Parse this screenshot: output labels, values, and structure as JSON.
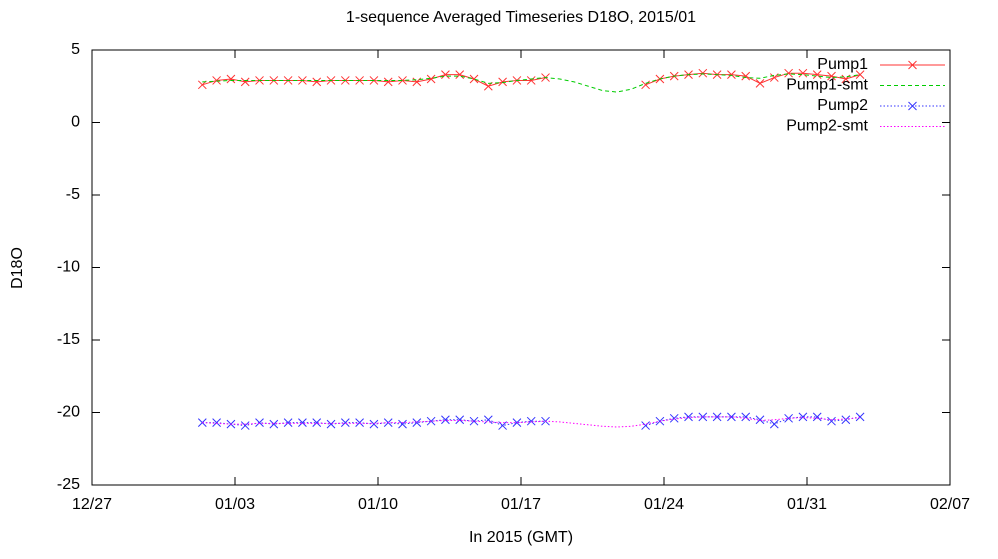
{
  "chart_data": {
    "type": "line",
    "title": "1-sequence Averaged Timeseries D18O, 2015/01",
    "x_label": "In 2015 (GMT)",
    "y_label": "D18O",
    "xlim": [
      0,
      42
    ],
    "xticks": [
      {
        "value": 0,
        "label": "12/27"
      },
      {
        "value": 7,
        "label": "01/03"
      },
      {
        "value": 14,
        "label": "01/10"
      },
      {
        "value": 21,
        "label": "01/17"
      },
      {
        "value": 28,
        "label": "01/24"
      },
      {
        "value": 35,
        "label": "01/31"
      },
      {
        "value": 42,
        "label": "02/07"
      }
    ],
    "ylim": [
      -25,
      5
    ],
    "yticks": [
      5,
      0,
      -5,
      -10,
      -15,
      -20,
      -25
    ],
    "legend": "top-right",
    "x": [
      5.4,
      6.1,
      6.8,
      7.5,
      8.2,
      8.9,
      9.6,
      10.3,
      11.0,
      11.7,
      12.4,
      13.1,
      13.8,
      14.5,
      15.2,
      15.9,
      16.6,
      17.3,
      18.0,
      18.7,
      19.4,
      20.1,
      20.8,
      21.5,
      22.2,
      22.9,
      23.6,
      24.3,
      25.0,
      25.7,
      26.4,
      27.1,
      27.8,
      28.5,
      29.2,
      29.9,
      30.6,
      31.3,
      32.0,
      32.7,
      33.4,
      34.1,
      34.8,
      35.5,
      36.2,
      36.9,
      37.6
    ],
    "series": [
      {
        "name": "Pump1",
        "color": "#ff3333",
        "style": "linespoints",
        "dash": "solid",
        "values": [
          2.6,
          2.9,
          3.0,
          2.8,
          2.9,
          2.9,
          2.9,
          2.9,
          2.8,
          2.9,
          2.9,
          2.9,
          2.9,
          2.8,
          2.9,
          2.8,
          3.0,
          3.3,
          3.3,
          3.0,
          2.5,
          2.8,
          2.9,
          2.9,
          3.1,
          null,
          null,
          null,
          null,
          null,
          null,
          2.6,
          3.0,
          3.2,
          3.3,
          3.4,
          3.3,
          3.3,
          3.2,
          2.7,
          3.1,
          3.4,
          3.4,
          3.3,
          3.2,
          3.0,
          3.3
        ]
      },
      {
        "name": "Pump1-smt",
        "color": "#00cc00",
        "style": "lines",
        "dash": "dashed",
        "values": [
          2.8,
          2.85,
          2.9,
          2.9,
          2.9,
          2.9,
          2.9,
          2.9,
          2.9,
          2.9,
          2.9,
          2.9,
          2.9,
          2.9,
          2.9,
          2.95,
          3.05,
          3.2,
          3.2,
          3.0,
          2.7,
          2.75,
          2.9,
          3.0,
          3.1,
          3.0,
          2.8,
          2.5,
          2.2,
          2.1,
          2.3,
          2.7,
          3.0,
          3.2,
          3.3,
          3.35,
          3.3,
          3.25,
          3.1,
          3.05,
          3.25,
          3.35,
          3.3,
          3.2,
          3.1,
          3.15,
          3.3
        ]
      },
      {
        "name": "Pump2",
        "color": "#3333ff",
        "style": "linespoints",
        "dash": "dotted",
        "values": [
          -20.7,
          -20.7,
          -20.8,
          -20.9,
          -20.7,
          -20.8,
          -20.7,
          -20.7,
          -20.7,
          -20.8,
          -20.7,
          -20.7,
          -20.8,
          -20.7,
          -20.8,
          -20.7,
          -20.6,
          -20.5,
          -20.5,
          -20.6,
          -20.5,
          -20.9,
          -20.7,
          -20.6,
          -20.6,
          null,
          null,
          null,
          null,
          null,
          null,
          -20.9,
          -20.6,
          -20.4,
          -20.3,
          -20.3,
          -20.3,
          -20.3,
          -20.3,
          -20.5,
          -20.8,
          -20.4,
          -20.3,
          -20.3,
          -20.6,
          -20.5,
          -20.3
        ]
      },
      {
        "name": "Pump2-smt",
        "color": "#ff00ff",
        "style": "lines",
        "dash": "dotted",
        "values": [
          -20.7,
          -20.75,
          -20.8,
          -20.8,
          -20.75,
          -20.75,
          -20.75,
          -20.75,
          -20.75,
          -20.75,
          -20.75,
          -20.75,
          -20.75,
          -20.7,
          -20.7,
          -20.65,
          -20.6,
          -20.55,
          -20.55,
          -20.6,
          -20.65,
          -20.7,
          -20.7,
          -20.65,
          -20.6,
          -20.65,
          -20.75,
          -20.85,
          -20.95,
          -21.0,
          -20.95,
          -20.8,
          -20.6,
          -20.45,
          -20.35,
          -20.3,
          -20.3,
          -20.3,
          -20.4,
          -20.55,
          -20.5,
          -20.4,
          -20.35,
          -20.4,
          -20.5,
          -20.45,
          -20.35
        ]
      }
    ]
  }
}
